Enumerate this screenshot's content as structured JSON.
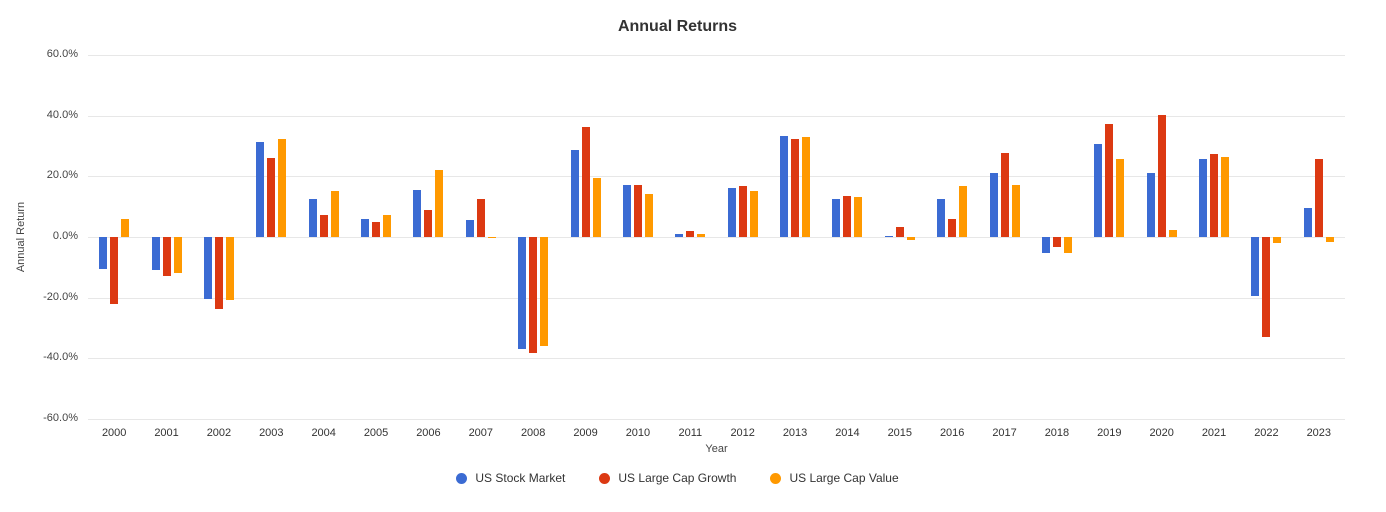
{
  "chart_data": {
    "type": "bar",
    "title": "Annual Returns",
    "xlabel": "Year",
    "ylabel": "Annual Return",
    "ylim": [
      -60,
      60
    ],
    "grid": true,
    "legend_position": "bottom",
    "yticks": [
      60,
      40,
      20,
      0,
      -20,
      -40,
      -60
    ],
    "ytick_labels": [
      "60.0%",
      "40.0%",
      "20.0%",
      "0.0%",
      "-20.0%",
      "-40.0%",
      "-60.0%"
    ],
    "categories": [
      "2000",
      "2001",
      "2002",
      "2003",
      "2004",
      "2005",
      "2006",
      "2007",
      "2008",
      "2009",
      "2010",
      "2011",
      "2012",
      "2013",
      "2014",
      "2015",
      "2016",
      "2017",
      "2018",
      "2019",
      "2020",
      "2021",
      "2022",
      "2023"
    ],
    "series": [
      {
        "name": "US Stock Market",
        "color": "#3b6bd3",
        "values": [
          -10.6,
          -11.0,
          -20.5,
          31.4,
          12.5,
          6.0,
          15.5,
          5.5,
          -37.0,
          28.7,
          17.1,
          1.0,
          16.3,
          33.4,
          12.4,
          0.3,
          12.5,
          21.2,
          -5.2,
          30.8,
          21.0,
          25.7,
          -19.5,
          9.4
        ]
      },
      {
        "name": "US Large Cap Growth",
        "color": "#dc3912",
        "values": [
          -22.1,
          -12.9,
          -23.7,
          25.9,
          7.2,
          5.1,
          9.0,
          12.6,
          -38.2,
          36.3,
          17.1,
          1.9,
          16.9,
          32.2,
          13.5,
          3.2,
          6.1,
          27.8,
          -3.3,
          37.2,
          40.2,
          27.3,
          -33.1,
          25.8
        ]
      },
      {
        "name": "US Large Cap Value",
        "color": "#ff9900",
        "values": [
          6.1,
          -11.9,
          -20.9,
          32.3,
          15.3,
          7.1,
          22.2,
          0.1,
          -36.0,
          19.6,
          14.3,
          1.1,
          15.1,
          32.9,
          13.1,
          -1.0,
          16.8,
          17.1,
          -5.4,
          25.8,
          2.3,
          26.5,
          -2.1,
          -1.6
        ]
      }
    ]
  }
}
